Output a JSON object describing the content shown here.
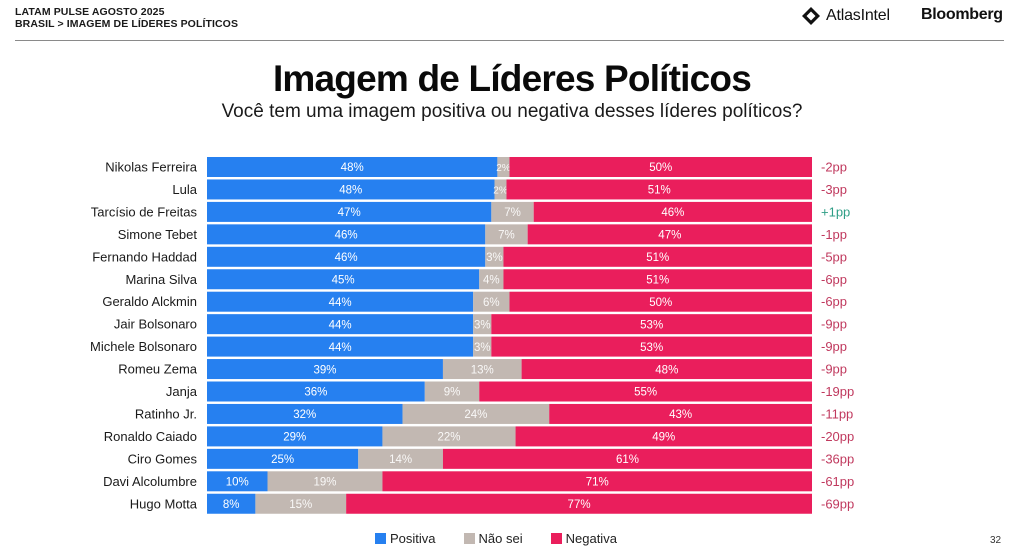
{
  "header": {
    "breadcrumb_line1": "LATAM PULSE AGOSTO 2025",
    "breadcrumb_line2": "BRASIL > IMAGEM DE LÍDERES POLÍTICOS",
    "logo_atlas": "AtlasIntel",
    "logo_bloomberg": "Bloomberg"
  },
  "page_number": "32",
  "colors": {
    "positiva": "#2680F0",
    "nao_sei": "#C2B8B2",
    "negativa": "#EA1E5C",
    "delta_negative": "#C0395E",
    "delta_positive": "#2E9E86"
  },
  "chart_data": {
    "type": "bar",
    "orientation": "horizontal",
    "stacked": true,
    "title": "Imagem de Líderes Políticos",
    "subtitle": "Você tem uma imagem positiva ou negativa desses líderes políticos?",
    "xlabel": "",
    "ylabel": "",
    "xlim": [
      0,
      100
    ],
    "grid": false,
    "legend_position": "bottom",
    "categories": [
      "Nikolas Ferreira",
      "Lula",
      "Tarcísio de Freitas",
      "Simone Tebet",
      "Fernando Haddad",
      "Marina Silva",
      "Geraldo Alckmin",
      "Jair Bolsonaro",
      "Michele Bolsonaro",
      "Romeu Zema",
      "Janja",
      "Ratinho Jr.",
      "Ronaldo Caiado",
      "Ciro Gomes",
      "Davi Alcolumbre",
      "Hugo Motta"
    ],
    "series": [
      {
        "name": "Positiva",
        "key": "positiva",
        "values": [
          48,
          48,
          47,
          46,
          46,
          45,
          44,
          44,
          44,
          39,
          36,
          32,
          29,
          25,
          10,
          8
        ]
      },
      {
        "name": "Não sei",
        "key": "nao_sei",
        "values": [
          2,
          2,
          7,
          7,
          3,
          4,
          6,
          3,
          3,
          13,
          9,
          24,
          22,
          14,
          19,
          15
        ]
      },
      {
        "name": "Negativa",
        "key": "negativa",
        "values": [
          50,
          51,
          46,
          47,
          51,
          51,
          50,
          53,
          53,
          48,
          55,
          43,
          49,
          61,
          71,
          77
        ]
      }
    ],
    "net_change_labels": [
      "-2pp",
      "-3pp",
      "+1pp",
      "-1pp",
      "-5pp",
      "-6pp",
      "-6pp",
      "-9pp",
      "-9pp",
      "-9pp",
      "-19pp",
      "-11pp",
      "-20pp",
      "-36pp",
      "-61pp",
      "-69pp"
    ],
    "value_label_suffix": "%"
  }
}
